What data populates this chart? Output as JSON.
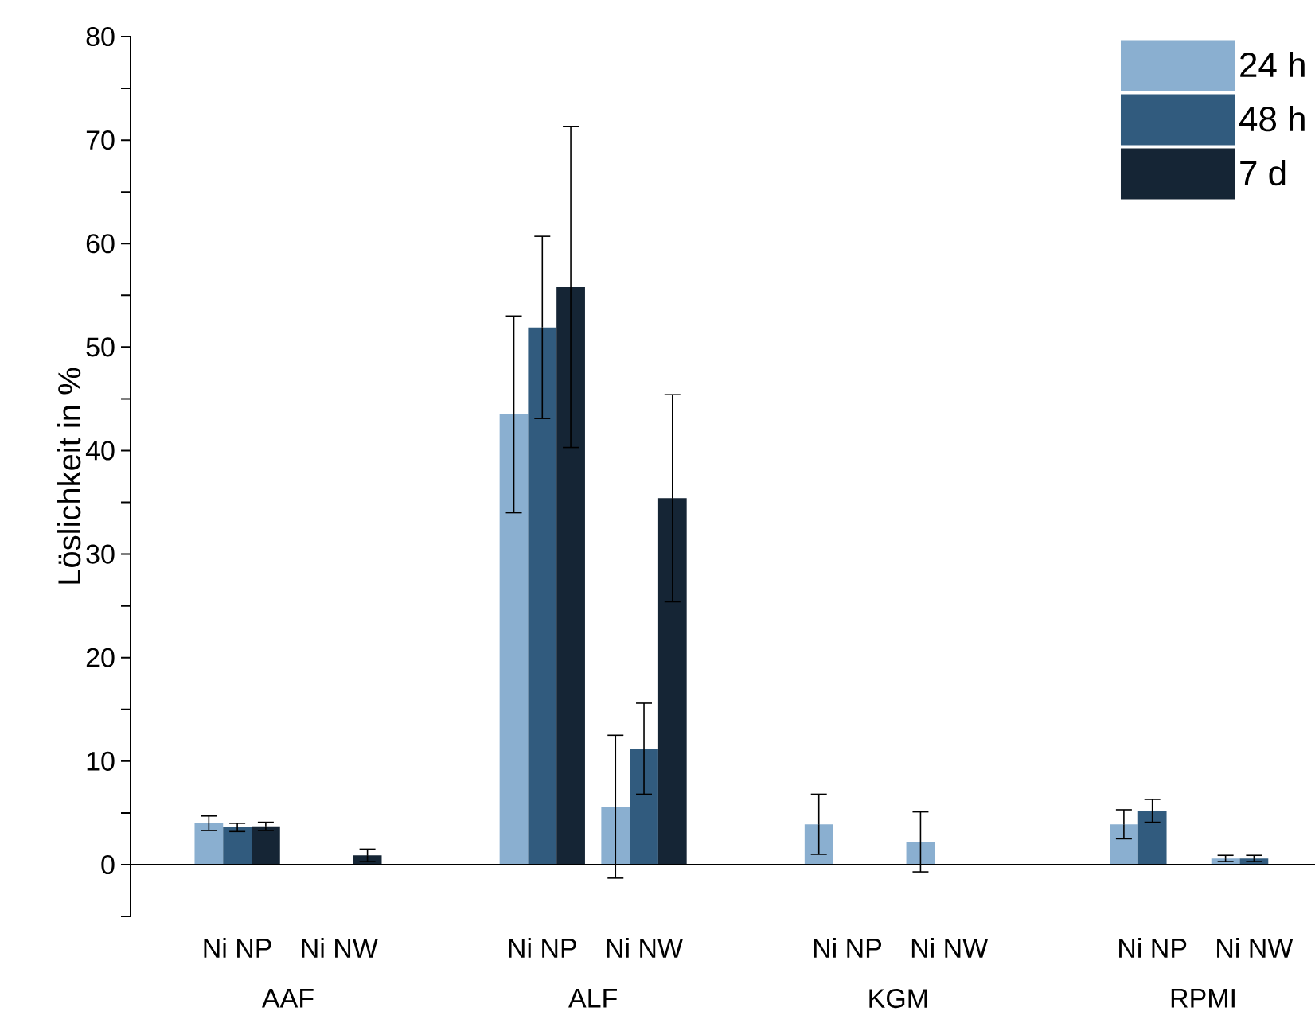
{
  "chart_data": {
    "type": "bar",
    "ylabel": "Löslichkeit in %",
    "categories": [
      "Ni NP",
      "Ni NW",
      null,
      "Ni NP",
      "Ni NW",
      null,
      "Ni NP",
      "Ni NW",
      null,
      "Ni NP",
      "Ni NW"
    ],
    "annotations": [
      "AAF",
      "ALF",
      "KGM",
      "RPMI"
    ],
    "series": [
      {
        "name": "24 h",
        "color": "#8aafd0",
        "values": [
          4.0,
          null,
          null,
          43.5,
          5.6,
          null,
          3.9,
          2.2,
          null,
          3.9,
          0.6
        ],
        "errors": [
          0.7,
          null,
          null,
          9.5,
          6.9,
          null,
          2.9,
          2.9,
          null,
          1.4,
          0.3
        ]
      },
      {
        "name": "48 h",
        "color": "#315b7e",
        "values": [
          3.6,
          null,
          null,
          51.9,
          11.2,
          null,
          null,
          null,
          null,
          5.2,
          0.6
        ],
        "errors": [
          0.4,
          null,
          null,
          8.8,
          4.4,
          null,
          null,
          null,
          null,
          1.1,
          0.3
        ]
      },
      {
        "name": "7 d",
        "color": "#152535",
        "values": [
          3.7,
          0.9,
          null,
          55.8,
          35.4,
          null,
          null,
          null,
          null,
          null,
          null
        ],
        "errors": [
          0.4,
          0.6,
          null,
          15.5,
          10.0,
          null,
          null,
          null,
          null,
          null,
          null
        ]
      }
    ],
    "ylim": [
      -5,
      80
    ],
    "yticks": [
      {
        "value": -5,
        "label": null
      },
      0,
      {
        "value": 5,
        "label": null
      },
      10,
      {
        "value": 15,
        "label": null
      },
      20,
      {
        "value": 25,
        "label": null
      },
      30,
      {
        "value": 35,
        "label": null
      },
      40,
      {
        "value": 45,
        "label": null
      },
      50,
      {
        "value": 55,
        "label": null
      },
      60,
      {
        "value": 65,
        "label": null
      },
      70,
      {
        "value": 75,
        "label": null
      },
      80
    ],
    "legend": "top right"
  }
}
